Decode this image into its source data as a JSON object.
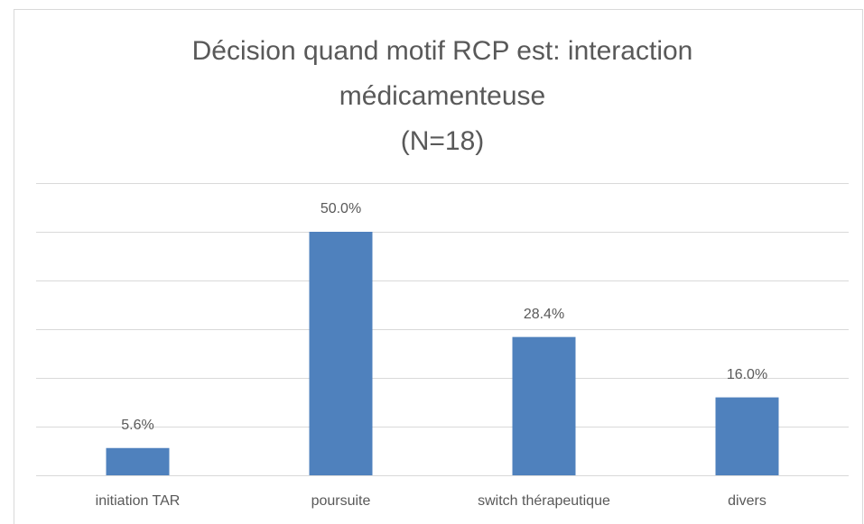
{
  "chart_data": {
    "type": "bar",
    "title": [
      "Décision quand motif RCP est: interaction",
      "médicamenteuse"
    ],
    "subtitle": "(N=18)",
    "categories": [
      "initiation TAR",
      "poursuite",
      "switch thérapeutique",
      "divers"
    ],
    "values": [
      5.6,
      50.0,
      28.4,
      16.0
    ],
    "value_labels": [
      "5.6%",
      "50.0%",
      "28.4%",
      "16.0%"
    ],
    "color": "#4f81bd",
    "ylim": [
      0,
      60
    ],
    "yticks": [
      0,
      10,
      20,
      30,
      40,
      50,
      60
    ],
    "grid": true
  }
}
